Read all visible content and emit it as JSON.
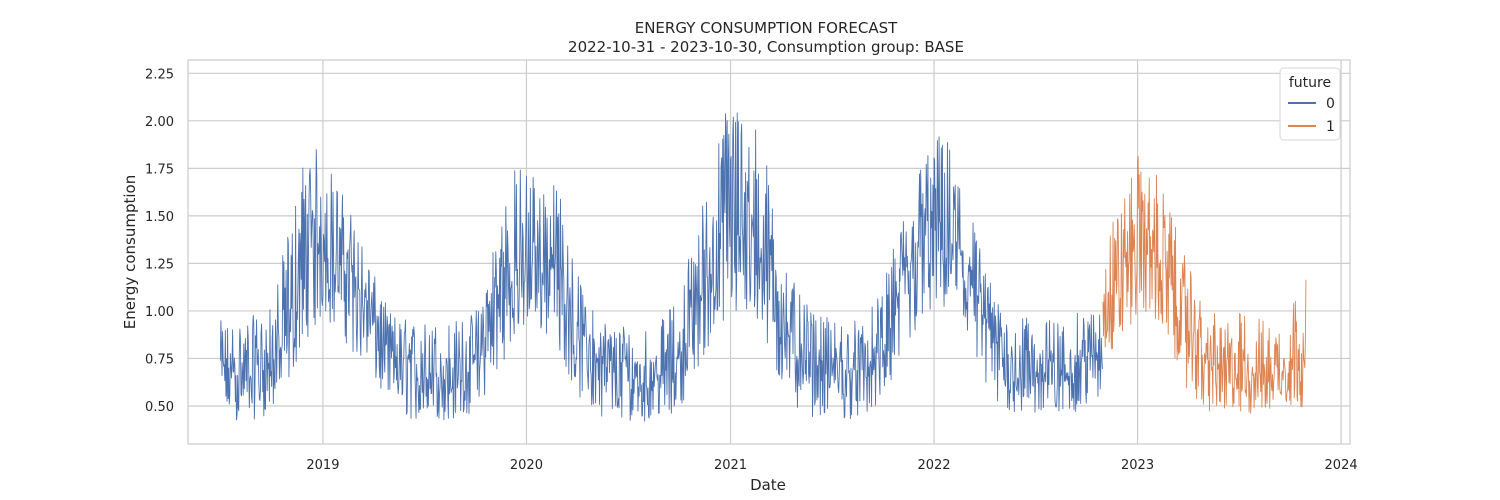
{
  "chart_data": {
    "type": "line",
    "title": "ENERGY CONSUMPTION FORECAST",
    "subtitle": "2022-10-31 - 2023-10-30, Consumption group: BASE",
    "xlabel": "Date",
    "ylabel": "Energy consumption",
    "xlim": [
      "2018-05-04",
      "2024-01-17"
    ],
    "ylim": [
      0.3,
      2.32
    ],
    "x_ticks": [
      "2019",
      "2020",
      "2021",
      "2022",
      "2023",
      "2024"
    ],
    "x_tick_dates": [
      "2019-01-01",
      "2020-01-01",
      "2021-01-01",
      "2022-01-01",
      "2023-01-01",
      "2024-01-01"
    ],
    "y_ticks": [
      0.5,
      0.75,
      1.0,
      1.25,
      1.5,
      1.75,
      2.0,
      2.25
    ],
    "y_tick_labels": [
      "0.50",
      "0.75",
      "1.00",
      "1.25",
      "1.50",
      "1.75",
      "2.00",
      "2.25"
    ],
    "grid": true,
    "legend": {
      "title": "future",
      "placement": "top-right"
    },
    "series": [
      {
        "name": "0",
        "color": "#4c72b0",
        "x": [
          "2018-07-01",
          "2018-08-01",
          "2018-09-01",
          "2018-10-01",
          "2018-11-01",
          "2018-12-01",
          "2019-01-01",
          "2019-02-01",
          "2019-03-01",
          "2019-04-01",
          "2019-05-01",
          "2019-06-01",
          "2019-07-01",
          "2019-08-01",
          "2019-09-01",
          "2019-10-01",
          "2019-11-01",
          "2019-12-01",
          "2020-01-01",
          "2020-02-01",
          "2020-03-01",
          "2020-04-01",
          "2020-05-01",
          "2020-06-01",
          "2020-07-01",
          "2020-08-01",
          "2020-09-01",
          "2020-10-01",
          "2020-11-01",
          "2020-12-01",
          "2021-01-01",
          "2021-02-01",
          "2021-03-01",
          "2021-04-01",
          "2021-05-01",
          "2021-06-01",
          "2021-07-01",
          "2021-08-01",
          "2021-09-01",
          "2021-10-01",
          "2021-11-01",
          "2021-12-01",
          "2022-01-01",
          "2022-02-01",
          "2022-03-01",
          "2022-04-01",
          "2022-05-01",
          "2022-06-01",
          "2022-07-01",
          "2022-08-01",
          "2022-09-01",
          "2022-10-01",
          "2022-10-30"
        ],
        "values": [
          0.68,
          0.66,
          0.69,
          0.72,
          0.88,
          1.25,
          1.38,
          1.3,
          1.15,
          0.95,
          0.78,
          0.7,
          0.66,
          0.65,
          0.67,
          0.72,
          0.95,
          1.15,
          1.25,
          1.28,
          1.18,
          0.92,
          0.76,
          0.68,
          0.65,
          0.64,
          0.66,
          0.75,
          1.02,
          1.25,
          1.45,
          1.42,
          1.28,
          1.0,
          0.82,
          0.72,
          0.68,
          0.67,
          0.69,
          0.78,
          1.05,
          1.3,
          1.45,
          1.4,
          1.22,
          0.95,
          0.78,
          0.7,
          0.67,
          0.66,
          0.68,
          0.74,
          0.8
        ],
        "upper": [
          0.95,
          0.96,
          0.98,
          1.02,
          1.45,
          1.88,
          1.85,
          1.65,
          1.48,
          1.2,
          1.0,
          0.96,
          0.95,
          0.96,
          0.96,
          1.0,
          1.38,
          1.75,
          1.8,
          1.72,
          1.65,
          1.2,
          1.0,
          0.95,
          0.95,
          0.94,
          0.96,
          1.1,
          1.48,
          1.78,
          2.22,
          2.1,
          1.9,
          1.35,
          1.1,
          0.98,
          0.96,
          0.96,
          0.97,
          1.12,
          1.48,
          1.75,
          1.95,
          1.9,
          1.65,
          1.25,
          1.0,
          0.97,
          0.96,
          0.96,
          0.98,
          1.0,
          1.05
        ],
        "lower": [
          0.44,
          0.42,
          0.43,
          0.46,
          0.62,
          0.85,
          0.95,
          0.88,
          0.75,
          0.62,
          0.48,
          0.43,
          0.42,
          0.42,
          0.43,
          0.46,
          0.62,
          0.8,
          0.9,
          0.88,
          0.78,
          0.55,
          0.46,
          0.43,
          0.42,
          0.42,
          0.43,
          0.48,
          0.68,
          0.85,
          0.95,
          0.95,
          0.82,
          0.6,
          0.46,
          0.44,
          0.43,
          0.43,
          0.44,
          0.5,
          0.7,
          0.88,
          0.98,
          0.95,
          0.78,
          0.55,
          0.47,
          0.45,
          0.45,
          0.45,
          0.46,
          0.48,
          0.52
        ]
      },
      {
        "name": "1",
        "color": "#dd8452",
        "x": [
          "2022-10-31",
          "2022-12-01",
          "2023-01-01",
          "2023-02-01",
          "2023-03-01",
          "2023-04-01",
          "2023-05-01",
          "2023-06-01",
          "2023-07-01",
          "2023-08-01",
          "2023-09-01",
          "2023-10-01",
          "2023-10-30"
        ],
        "values": [
          1.05,
          1.2,
          1.38,
          1.3,
          1.12,
          0.95,
          0.75,
          0.68,
          0.66,
          0.67,
          0.68,
          0.72,
          0.78
        ],
        "upper": [
          1.35,
          1.58,
          1.82,
          1.76,
          1.52,
          1.25,
          1.0,
          0.98,
          1.0,
          0.98,
          0.96,
          1.05,
          1.17
        ],
        "lower": [
          0.75,
          0.82,
          0.98,
          0.95,
          0.78,
          0.58,
          0.47,
          0.44,
          0.44,
          0.45,
          0.46,
          0.48,
          0.5
        ]
      }
    ]
  }
}
